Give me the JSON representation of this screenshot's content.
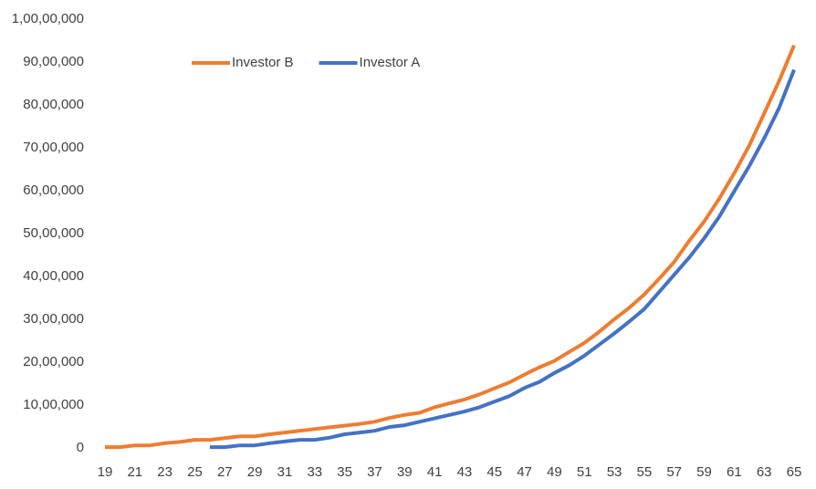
{
  "chart_data": {
    "type": "line",
    "x": [
      19,
      20,
      21,
      22,
      23,
      24,
      25,
      26,
      27,
      28,
      29,
      30,
      31,
      32,
      33,
      34,
      35,
      36,
      37,
      38,
      39,
      40,
      41,
      42,
      43,
      44,
      45,
      46,
      47,
      48,
      49,
      50,
      51,
      52,
      53,
      54,
      55,
      56,
      57,
      58,
      59,
      60,
      61,
      62,
      63,
      64,
      65
    ],
    "series": [
      {
        "name": "Investor B",
        "color": "#ed7d31",
        "values": [
          20000,
          20000,
          60000,
          60000,
          110000,
          140000,
          190000,
          190000,
          230000,
          270000,
          270000,
          320000,
          360000,
          400000,
          440000,
          480000,
          520000,
          560000,
          610000,
          700000,
          770000,
          820000,
          950000,
          1040000,
          1130000,
          1250000,
          1390000,
          1530000,
          1710000,
          1880000,
          2030000,
          2240000,
          2450000,
          2710000,
          3000000,
          3270000,
          3580000,
          3950000,
          4340000,
          4830000,
          5280000,
          5810000,
          6400000,
          7050000,
          7800000,
          8560000,
          9390000
        ]
      },
      {
        "name": "Investor A",
        "color": "#4472c4",
        "values": [
          null,
          null,
          null,
          null,
          null,
          null,
          null,
          20000,
          20000,
          60000,
          60000,
          110000,
          150000,
          190000,
          190000,
          240000,
          320000,
          360000,
          400000,
          490000,
          530000,
          610000,
          690000,
          770000,
          850000,
          950000,
          1080000,
          1210000,
          1400000,
          1540000,
          1750000,
          1930000,
          2150000,
          2410000,
          2670000,
          2950000,
          3240000,
          3640000,
          4040000,
          4440000,
          4890000,
          5390000,
          5980000,
          6570000,
          7220000,
          7930000,
          8820000
        ]
      }
    ],
    "xlim": [
      19,
      65
    ],
    "xticks": [
      19,
      21,
      23,
      25,
      27,
      29,
      31,
      33,
      35,
      37,
      39,
      41,
      43,
      45,
      47,
      49,
      51,
      53,
      55,
      57,
      59,
      61,
      63,
      65
    ],
    "ylim": [
      0,
      10000000
    ],
    "yticks": [
      0,
      {
        "value": 1000000,
        "label": "10,00,000"
      },
      {
        "value": 2000000,
        "label": "20,00,000"
      },
      {
        "value": 3000000,
        "label": "30,00,000"
      },
      {
        "value": 4000000,
        "label": "40,00,000"
      },
      {
        "value": 5000000,
        "label": "50,00,000"
      },
      {
        "value": 6000000,
        "label": "60,00,000"
      },
      {
        "value": 7000000,
        "label": "70,00,000"
      },
      {
        "value": 8000000,
        "label": "80,00,000"
      },
      {
        "value": 9000000,
        "label": "90,00,000"
      },
      {
        "value": 10000000,
        "label": "1,00,00,000"
      }
    ],
    "legend": "top"
  }
}
